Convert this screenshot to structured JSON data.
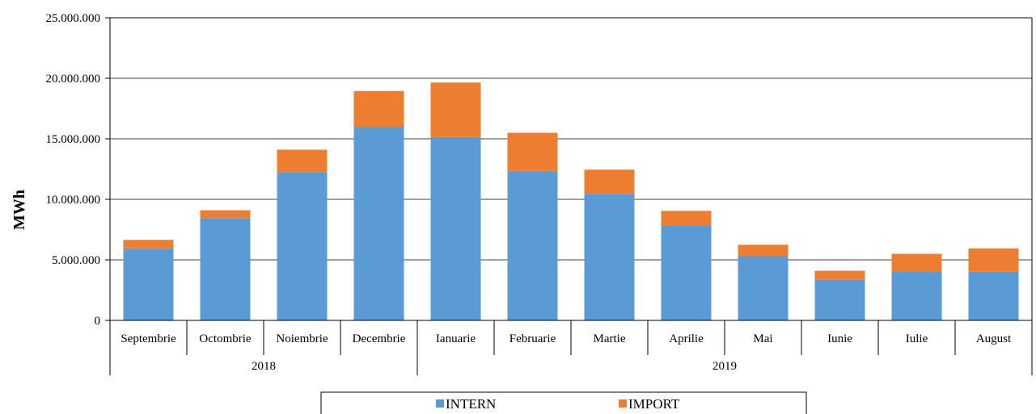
{
  "chart_data": {
    "type": "bar",
    "stacked": true,
    "title": "",
    "xlabel": "",
    "ylabel": "MWh",
    "ylim": [
      0,
      25000000
    ],
    "yticks": [
      "0",
      "5.000.000",
      "10.000.000",
      "15.000.000",
      "20.000.000",
      "25.000.000"
    ],
    "yticks_values": [
      0,
      5000000,
      10000000,
      15000000,
      20000000,
      25000000
    ],
    "grid": "horizontal",
    "legend_position": "bottom",
    "categories": [
      "Septembrie",
      "Octombrie",
      "Noiembrie",
      "Decembrie",
      "Ianuarie",
      "Februarie",
      "Martie",
      "Aprilie",
      "Mai",
      "Iunie",
      "Iulie",
      "August"
    ],
    "groups": [
      {
        "label": "2018",
        "count": 4
      },
      {
        "label": "2019",
        "count": 8
      }
    ],
    "series": [
      {
        "name": "INTERN",
        "color": "#5B9BD5",
        "values": [
          5950000,
          8450000,
          12250000,
          16000000,
          15150000,
          12350000,
          10450000,
          7800000,
          5300000,
          3350000,
          4000000,
          4050000
        ]
      },
      {
        "name": "IMPORT",
        "color": "#ED7D31",
        "values": [
          700000,
          650000,
          1850000,
          2950000,
          4500000,
          3150000,
          2000000,
          1250000,
          950000,
          750000,
          1500000,
          1900000
        ]
      }
    ]
  }
}
